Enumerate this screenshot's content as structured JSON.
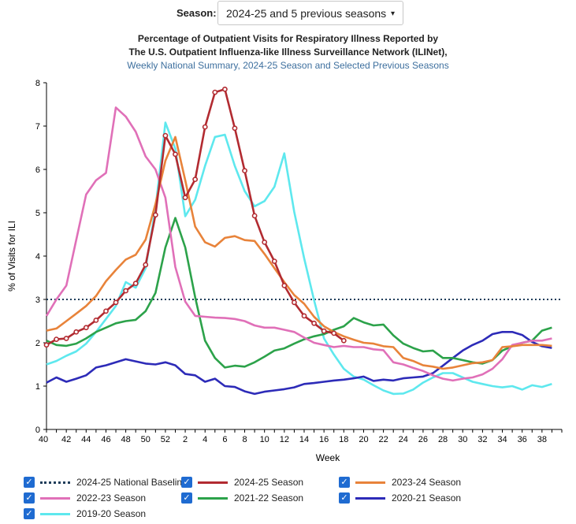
{
  "selector": {
    "label": "Season:",
    "value": "2024-25 and 5 previous seasons",
    "caret": "▾"
  },
  "titles": {
    "line1": "Percentage of Outpatient Visits for Respiratory Illness Reported by",
    "line2": "The U.S. Outpatient Influenza-like Illness Surveillance Network (ILINet),",
    "line3": "Weekly National Summary, 2024-25 Season and Selected Previous Seasons"
  },
  "chart_data": {
    "type": "line",
    "xlabel": "Week",
    "ylabel": "% of Visits for ILI",
    "ylim": [
      0,
      8
    ],
    "yticks": [
      "0",
      "1",
      "2",
      "3",
      "4",
      "5",
      "6",
      "7",
      "8"
    ],
    "xticks": [
      "40",
      "42",
      "44",
      "46",
      "48",
      "50",
      "52",
      "2",
      "4",
      "6",
      "8",
      "10",
      "12",
      "14",
      "16",
      "18",
      "20",
      "22",
      "24",
      "26",
      "28",
      "30",
      "32",
      "34",
      "36",
      "38"
    ],
    "baseline": {
      "name": "2024-25 National Baseline",
      "value": 3.0,
      "color": "#1f3d5a"
    },
    "series": [
      {
        "name": "2024-25 Season",
        "color": "#b22b31",
        "markers": true,
        "values": [
          1.95,
          2.08,
          2.1,
          2.25,
          2.35,
          2.52,
          2.73,
          2.93,
          3.2,
          3.37,
          3.8,
          4.95,
          6.78,
          6.35,
          5.35,
          5.77,
          6.98,
          7.78,
          7.85,
          6.95,
          5.97,
          4.93,
          4.32,
          3.88,
          3.32,
          2.93,
          2.62,
          2.45,
          2.27,
          2.22,
          2.05
        ]
      },
      {
        "name": "2023-24 Season",
        "color": "#e8833a",
        "values": [
          2.28,
          2.33,
          2.5,
          2.67,
          2.85,
          3.08,
          3.42,
          3.68,
          3.92,
          4.03,
          4.38,
          5.2,
          6.2,
          6.75,
          5.75,
          4.68,
          4.32,
          4.22,
          4.42,
          4.46,
          4.37,
          4.35,
          4.05,
          3.72,
          3.4,
          3.1,
          2.9,
          2.6,
          2.38,
          2.25,
          2.15,
          2.07,
          2.0,
          1.98,
          1.92,
          1.9,
          1.65,
          1.58,
          1.48,
          1.45,
          1.4,
          1.43,
          1.48,
          1.53,
          1.55,
          1.6,
          1.9,
          1.92,
          1.95,
          1.95,
          1.95,
          1.93
        ]
      },
      {
        "name": "2022-23 Season",
        "color": "#e070b8",
        "values": [
          2.62,
          3.0,
          3.32,
          4.37,
          5.42,
          5.75,
          5.92,
          7.43,
          7.22,
          6.87,
          6.3,
          6.0,
          5.35,
          3.75,
          2.95,
          2.62,
          2.6,
          2.58,
          2.57,
          2.55,
          2.5,
          2.4,
          2.35,
          2.35,
          2.3,
          2.25,
          2.12,
          2.0,
          1.95,
          1.9,
          1.93,
          1.9,
          1.9,
          1.85,
          1.83,
          1.55,
          1.5,
          1.42,
          1.35,
          1.25,
          1.17,
          1.13,
          1.17,
          1.2,
          1.27,
          1.4,
          1.62,
          1.95,
          2.0,
          2.05,
          2.05,
          2.1
        ]
      },
      {
        "name": "2021-22 Season",
        "color": "#2ca24a",
        "values": [
          2.05,
          1.95,
          1.93,
          1.98,
          2.1,
          2.25,
          2.35,
          2.45,
          2.5,
          2.53,
          2.73,
          3.15,
          4.2,
          4.88,
          4.2,
          3.05,
          2.05,
          1.65,
          1.43,
          1.47,
          1.45,
          1.55,
          1.68,
          1.82,
          1.87,
          1.98,
          2.08,
          2.15,
          2.2,
          2.3,
          2.38,
          2.57,
          2.47,
          2.4,
          2.42,
          2.17,
          1.98,
          1.88,
          1.8,
          1.82,
          1.65,
          1.65,
          1.6,
          1.55,
          1.52,
          1.6,
          1.82,
          1.92,
          2.0,
          2.05,
          2.28,
          2.35
        ]
      },
      {
        "name": "2020-21 Season",
        "color": "#2d2bb8",
        "values": [
          1.08,
          1.2,
          1.1,
          1.17,
          1.25,
          1.43,
          1.48,
          1.55,
          1.62,
          1.57,
          1.52,
          1.5,
          1.55,
          1.48,
          1.28,
          1.25,
          1.1,
          1.17,
          1.0,
          0.98,
          0.88,
          0.82,
          0.87,
          0.9,
          0.93,
          0.97,
          1.05,
          1.07,
          1.1,
          1.13,
          1.15,
          1.18,
          1.22,
          1.12,
          1.15,
          1.13,
          1.18,
          1.2,
          1.22,
          1.3,
          1.47,
          1.65,
          1.82,
          1.95,
          2.05,
          2.2,
          2.25,
          2.25,
          2.18,
          2.02,
          1.92,
          1.88
        ]
      },
      {
        "name": "2019-20 Season",
        "color": "#5ee8ee",
        "values": [
          1.5,
          1.58,
          1.7,
          1.8,
          1.98,
          2.25,
          2.55,
          2.85,
          3.4,
          3.27,
          3.72,
          5.1,
          7.08,
          6.48,
          4.92,
          5.3,
          6.08,
          6.75,
          6.8,
          6.08,
          5.5,
          5.15,
          5.27,
          5.6,
          6.37,
          5.02,
          3.95,
          2.98,
          2.1,
          1.73,
          1.4,
          1.22,
          1.15,
          1.02,
          0.9,
          0.82,
          0.83,
          0.92,
          1.08,
          1.2,
          1.3,
          1.3,
          1.2,
          1.1,
          1.05,
          1.0,
          0.97,
          1.0,
          0.92,
          1.02,
          0.98,
          1.05
        ]
      }
    ]
  },
  "legend_order": [
    "baseline",
    "2024-25 Season",
    "2023-24 Season",
    "2022-23 Season",
    "2021-22 Season",
    "2020-21 Season",
    "2019-20 Season"
  ]
}
